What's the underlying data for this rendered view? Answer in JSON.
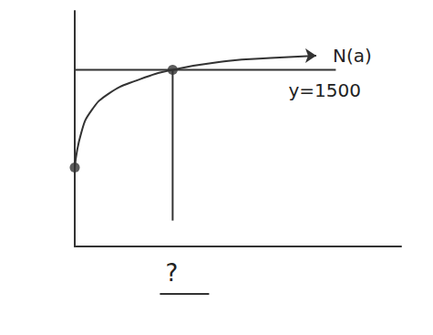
{
  "chart_data": {
    "type": "line",
    "color": "#333333",
    "grid": false,
    "tick_labels": false,
    "xlim": [
      0,
      10
    ],
    "ylim": [
      0,
      2000
    ],
    "xticks": [],
    "yticks": [],
    "series": [
      {
        "name": "N(a)",
        "marker": "arrow",
        "x": [
          0,
          0.2,
          0.5,
          1.05,
          1.9,
          3,
          4.7,
          6,
          7.4
        ],
        "values": [
          670,
          966,
          1150,
          1300,
          1410,
          1500,
          1575,
          1600,
          1620
        ]
      },
      {
        "name": "y=1500",
        "x": [
          0,
          8
        ],
        "values": [
          1500,
          1500
        ]
      }
    ],
    "vlines": [
      {
        "x": 3,
        "from": 220,
        "to": 1500
      }
    ],
    "points": [
      {
        "x": 0,
        "y": 670
      },
      {
        "x": 3,
        "y": 1500
      }
    ],
    "annotations": [
      {
        "text": "?",
        "x": 3
      }
    ]
  }
}
